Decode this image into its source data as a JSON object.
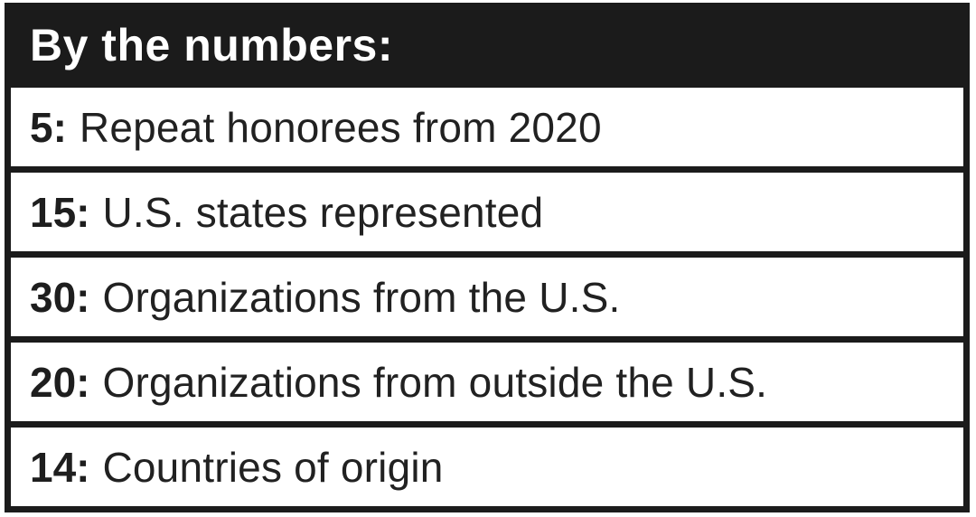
{
  "title": "By the numbers:",
  "rows": [
    {
      "number": "5:",
      "label": "Repeat honorees from 2020"
    },
    {
      "number": "15:",
      "label": "U.S. states represented"
    },
    {
      "number": "30:",
      "label": "Organizations from the U.S."
    },
    {
      "number": "20:",
      "label": "Organizations from outside the U.S."
    },
    {
      "number": "14:",
      "label": "Countries of origin"
    }
  ],
  "colors": {
    "header_bg": "#1b1b1b",
    "border": "#1b1b1b",
    "row_bg": "#ffffff",
    "header_text": "#ffffff",
    "row_text": "#212121"
  },
  "chart_data": {
    "type": "table",
    "title": "By the numbers:",
    "categories": [
      "Repeat honorees from 2020",
      "U.S. states represented",
      "Organizations from the U.S.",
      "Organizations from outside the U.S.",
      "Countries of origin"
    ],
    "values": [
      5,
      15,
      30,
      20,
      14
    ]
  }
}
